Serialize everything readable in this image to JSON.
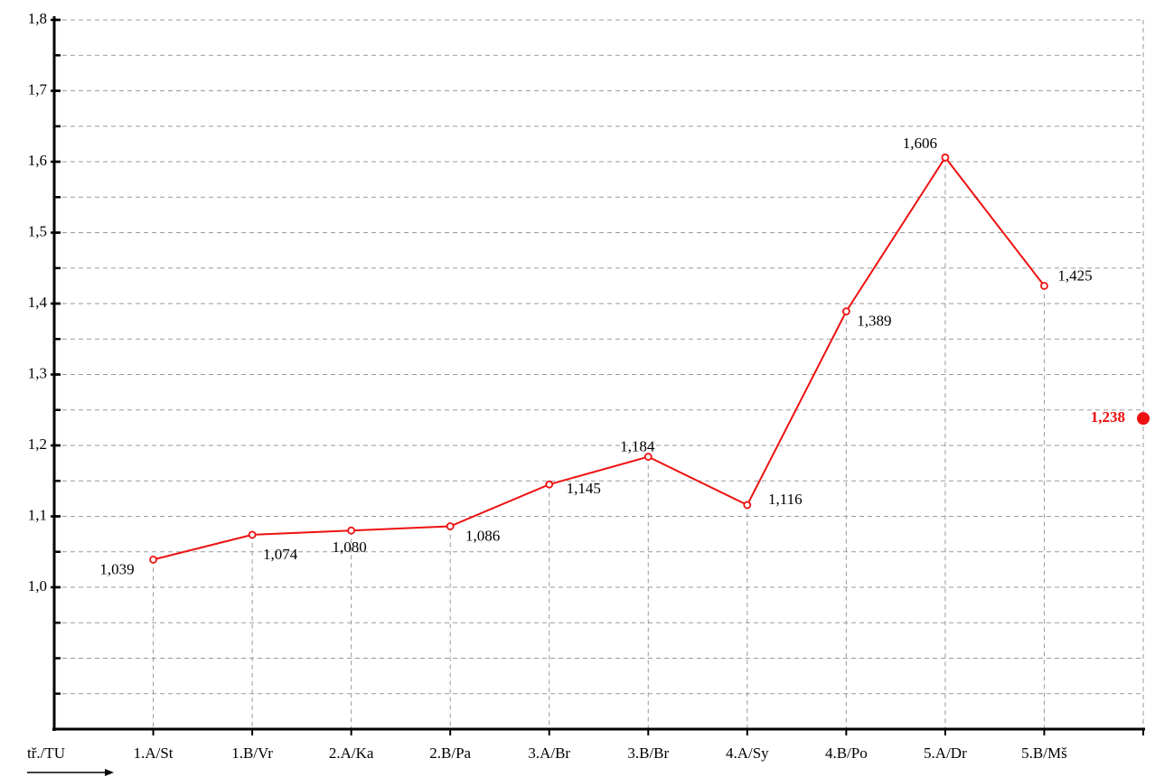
{
  "chart_data": {
    "type": "line",
    "x_axis_label": "tř./TU",
    "categories": [
      "1.A/St",
      "1.B/Vr",
      "2.A/Ka",
      "2.B/Pa",
      "3.A/Br",
      "3.B/Br",
      "4.A/Sy",
      "4.B/Po",
      "5.A/Dr",
      "5.B/Mš"
    ],
    "series": [
      {
        "color": "#ee1111",
        "values": [
          1.039,
          1.074,
          1.08,
          1.086,
          1.145,
          1.184,
          1.116,
          1.389,
          1.606,
          1.425
        ],
        "value_labels": [
          "1,039",
          "1,074",
          "1,080",
          "1,086",
          "1,145",
          "1,184",
          "1,116",
          "1,389",
          "1,606",
          "1,425"
        ]
      }
    ],
    "average": {
      "value": 1.238,
      "label": "1,238",
      "color": "#ee1111"
    },
    "ylim": [
      0.8,
      1.8
    ],
    "yticks": [
      {
        "value": 1.0,
        "label": "1,0"
      },
      {
        "value": 1.1,
        "label": "1,1"
      },
      {
        "value": 1.2,
        "label": "1,2"
      },
      {
        "value": 1.3,
        "label": "1,3"
      },
      {
        "value": 1.4,
        "label": "1,4"
      },
      {
        "value": 1.5,
        "label": "1,5"
      },
      {
        "value": 1.6,
        "label": "1,6"
      },
      {
        "value": 1.7,
        "label": "1,7"
      },
      {
        "value": 1.8,
        "label": "1,8"
      }
    ],
    "minor_yticks": [
      0.8,
      0.85,
      0.9,
      0.95,
      1.0,
      1.05,
      1.1,
      1.15,
      1.2,
      1.25,
      1.3,
      1.35,
      1.4,
      1.45,
      1.5,
      1.55,
      1.6,
      1.65,
      1.7,
      1.75,
      1.8
    ],
    "grid": true
  }
}
